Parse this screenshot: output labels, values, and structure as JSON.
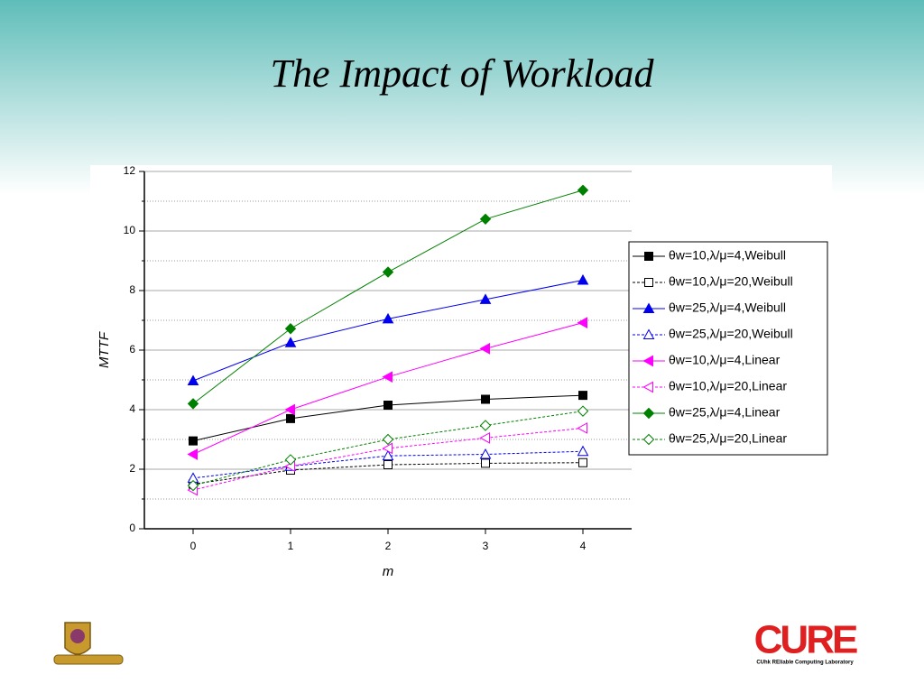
{
  "slide_title": "The Impact of Workload",
  "logo_text": "CURE",
  "logo_caption": "CUhk REliable Computing Laboratory",
  "chart_data": {
    "type": "line",
    "x_label": "m",
    "y_label": "MTTF",
    "x": [
      0,
      1,
      2,
      3,
      4
    ],
    "xlim": [
      -0.5,
      4.5
    ],
    "xticks": [
      0,
      1,
      2,
      3,
      4
    ],
    "ylim": [
      0,
      12
    ],
    "yticks": [
      0,
      2,
      4,
      6,
      8,
      10,
      12
    ],
    "minor_yticks": [
      1,
      3,
      5,
      7,
      9,
      11
    ],
    "grid": true,
    "legend": "right",
    "series": [
      {
        "name": "θw=10,λ/μ=4,Weibull",
        "color": "#000000",
        "marker": "square",
        "filled": true,
        "dashed": false,
        "values": [
          2.95,
          3.7,
          4.15,
          4.35,
          4.48
        ]
      },
      {
        "name": "θw=10,λ/μ=20,Weibull",
        "color": "#000000",
        "marker": "square",
        "filled": false,
        "dashed": true,
        "values": [
          1.5,
          1.97,
          2.15,
          2.2,
          2.22
        ]
      },
      {
        "name": "θw=25,λ/μ=4,Weibull",
        "color": "#0000ee",
        "marker": "triangle-up",
        "filled": true,
        "dashed": false,
        "values": [
          4.97,
          6.25,
          7.05,
          7.7,
          8.35
        ]
      },
      {
        "name": "θw=25,λ/μ=20,Weibull",
        "color": "#0000ee",
        "marker": "triangle-up",
        "filled": false,
        "dashed": true,
        "values": [
          1.7,
          2.1,
          2.45,
          2.5,
          2.6
        ]
      },
      {
        "name": "θw=10,λ/μ=4,Linear",
        "color": "#ff00ff",
        "marker": "triangle-left",
        "filled": true,
        "dashed": false,
        "values": [
          2.5,
          4.0,
          5.1,
          6.05,
          6.92
        ]
      },
      {
        "name": "θw=10,λ/μ=20,Linear",
        "color": "#ff00ff",
        "marker": "triangle-left",
        "filled": false,
        "dashed": true,
        "values": [
          1.3,
          2.1,
          2.7,
          3.05,
          3.38
        ]
      },
      {
        "name": "θw=25,λ/μ=4,Linear",
        "color": "#008000",
        "marker": "diamond",
        "filled": true,
        "dashed": false,
        "values": [
          4.2,
          6.72,
          8.62,
          10.4,
          11.37
        ]
      },
      {
        "name": "θw=25,λ/μ=20,Linear",
        "color": "#008000",
        "marker": "diamond",
        "filled": false,
        "dashed": true,
        "values": [
          1.45,
          2.32,
          3.0,
          3.47,
          3.95
        ]
      }
    ]
  }
}
